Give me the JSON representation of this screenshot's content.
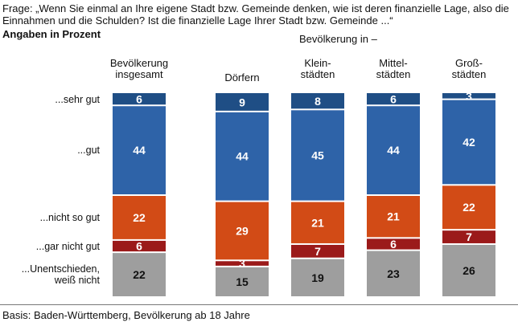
{
  "chart_data": {
    "type": "bar",
    "stacked": true,
    "title": "Frage: „Wenn Sie einmal an Ihre eigene Stadt bzw. Gemeinde denken, wie ist deren finanzielle Lage, also die Einnahmen und die Schulden? Ist die finanzielle Lage Ihrer Stadt bzw. Gemeinde ...“",
    "subtitle": "Angaben in Prozent",
    "group_label": "Bevölkerung in –",
    "categories": [
      "Bevölkerung insgesamt",
      "Dörfern",
      "Klein-städten",
      "Mittel-städten",
      "Groß-städten"
    ],
    "category_lines": [
      [
        "Bevölkerung",
        "insgesamt"
      ],
      [
        "Dörfern"
      ],
      [
        "Klein-",
        "städten"
      ],
      [
        "Mittel-",
        "städten"
      ],
      [
        "Groß-",
        "städten"
      ]
    ],
    "series": [
      {
        "name": "...sehr gut",
        "label_lines": [
          "...sehr gut"
        ],
        "color": "#1f4e85",
        "values": [
          6,
          9,
          8,
          6,
          3
        ]
      },
      {
        "name": "...gut",
        "label_lines": [
          "...gut"
        ],
        "color": "#2e63a8",
        "values": [
          44,
          44,
          45,
          44,
          42
        ]
      },
      {
        "name": "...nicht so gut",
        "label_lines": [
          "...nicht so gut"
        ],
        "color": "#d24b16",
        "values": [
          22,
          29,
          21,
          21,
          22
        ]
      },
      {
        "name": "...gar nicht gut",
        "label_lines": [
          "...gar nicht gut"
        ],
        "color": "#9b1a1a",
        "values": [
          6,
          3,
          7,
          6,
          7
        ]
      },
      {
        "name": "...Unentschieden, weiß nicht",
        "label_lines": [
          "...Unentschieden,",
          "weiß nicht"
        ],
        "color": "#9e9e9e",
        "values": [
          22,
          15,
          19,
          23,
          26
        ]
      }
    ]
  },
  "footer": {
    "basis": "Basis: Baden-Württemberg, Bevölkerung ab 18 Jahre"
  }
}
